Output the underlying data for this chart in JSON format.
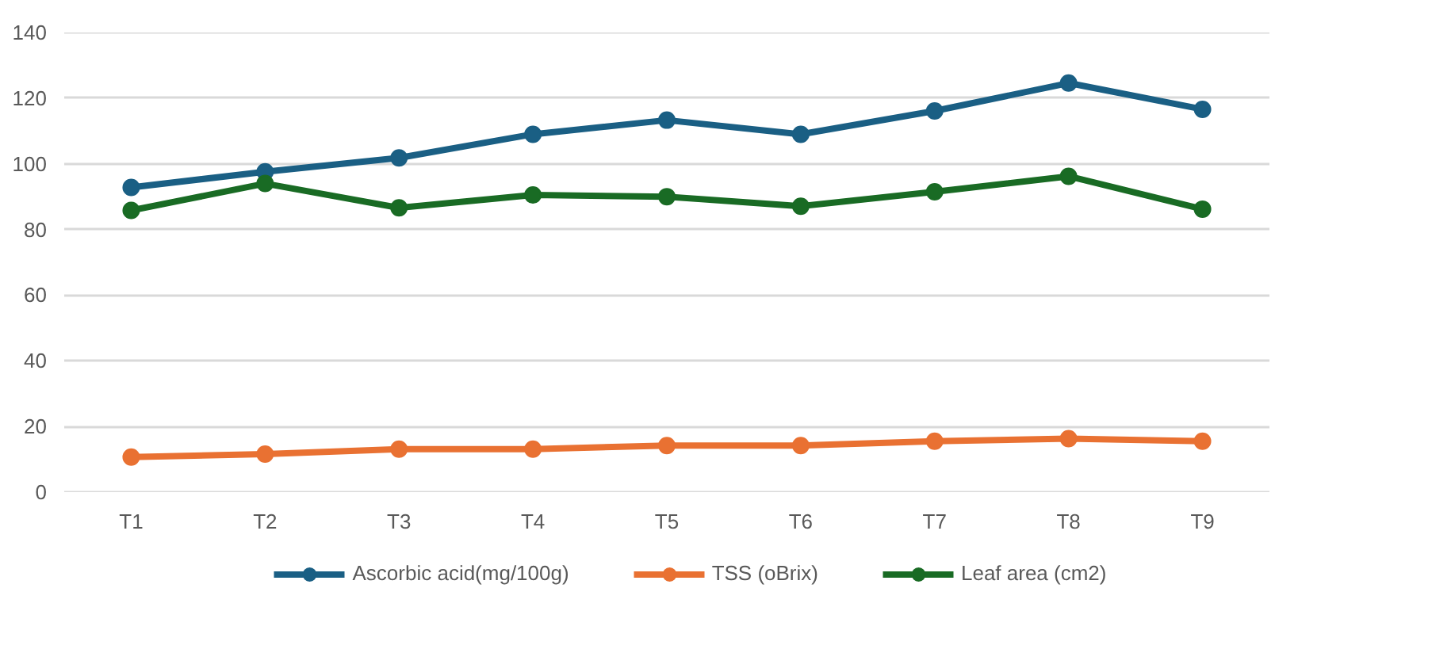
{
  "chart_data": {
    "type": "line",
    "categories": [
      "T1",
      "T2",
      "T3",
      "T4",
      "T5",
      "T6",
      "T7",
      "T8",
      "T9"
    ],
    "series": [
      {
        "name": "Ascorbic acid(mg/100g)",
        "color": "#1a5f84",
        "values": [
          92.8,
          97.6,
          101.8,
          109,
          113.3,
          109,
          116.1,
          124.6,
          116.6
        ]
      },
      {
        "name": "TSS (oBrix)",
        "color": "#e97132",
        "values": [
          10.7,
          11.6,
          13.1,
          13.1,
          14.2,
          14.2,
          15.5,
          16.3,
          15.5
        ]
      },
      {
        "name": "Leaf area (cm2)",
        "color": "#196b24",
        "values": [
          85.8,
          94,
          86.6,
          90.5,
          90,
          87.1,
          91.5,
          96.2,
          86.2
        ]
      }
    ],
    "ylim": [
      0,
      140
    ],
    "yticks": [
      0,
      20,
      40,
      60,
      80,
      100,
      120,
      140
    ],
    "grid": "y",
    "legend": "bottom",
    "marker": "circle",
    "line_style": "solid"
  }
}
